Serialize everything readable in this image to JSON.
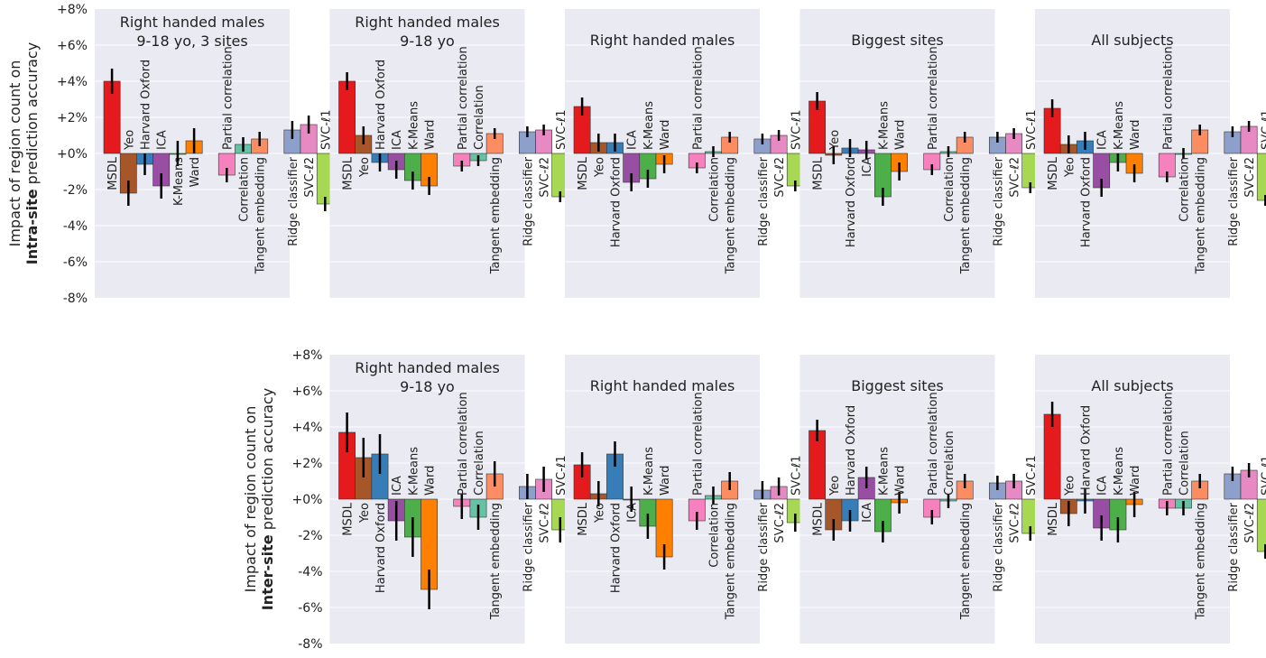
{
  "figure": {
    "row_ylabels": [
      {
        "line1": "Impact of region count on",
        "bold": "Intra-site",
        "rest": " prediction accuracy"
      },
      {
        "line1": "Impact of region count on",
        "bold": "Inter-site",
        "rest": " prediction accuracy"
      }
    ],
    "colors": {
      "panel_bg": "#EAEAF2",
      "grid": "#FFFFFF",
      "error_bar": "#000000",
      "MSDL": "#E41A1C",
      "Yeo": "#A65628",
      "Harvard Oxford": "#377EB8",
      "ICA": "#984EA3",
      "K-Means": "#4DAF4A",
      "Ward": "#FF7F00",
      "Partial correlation": "#F781BF",
      "Correlation": "#66C2A5",
      "Tangent embedding": "#FC8D62",
      "Ridge classifier": "#8DA0CB",
      "SVC-ℓ2": "#E78AC3",
      "SVC-ℓ1": "#A6D854"
    }
  },
  "chart_data": [
    {
      "type": "bar",
      "row": "Intra-site",
      "title": [
        "Right handed males",
        "9-18 yo, 3 sites"
      ],
      "ylim": [
        -8,
        8
      ],
      "yticks": [
        "+8%",
        "+6%",
        "+4%",
        "+2%",
        "+0%",
        "-2%",
        "-4%",
        "-6%",
        "-8%"
      ],
      "categories": [
        "MSDL",
        "Yeo",
        "Harvard Oxford",
        "ICA",
        "K-Means",
        "Ward",
        "Partial correlation",
        "Correlation",
        "Tangent embedding",
        "Ridge classifier",
        "SVC-ℓ2",
        "SVC-ℓ1"
      ],
      "values": [
        4.0,
        -2.2,
        -0.6,
        -1.8,
        0.0,
        0.7,
        -1.2,
        0.5,
        0.8,
        1.3,
        1.6,
        -2.8
      ],
      "errors": [
        0.7,
        0.7,
        0.6,
        0.7,
        0.7,
        0.7,
        0.4,
        0.4,
        0.4,
        0.5,
        0.5,
        0.4
      ]
    },
    {
      "type": "bar",
      "row": "Intra-site",
      "title": [
        "Right handed males",
        "9-18 yo"
      ],
      "ylim": [
        -8,
        8
      ],
      "categories": [
        "MSDL",
        "Yeo",
        "Harvard Oxford",
        "ICA",
        "K-Means",
        "Ward",
        "Partial correlation",
        "Correlation",
        "Tangent embedding",
        "Ridge classifier",
        "SVC-ℓ2",
        "SVC-ℓ1"
      ],
      "values": [
        4.0,
        1.0,
        -0.5,
        -0.9,
        -1.5,
        -1.8,
        -0.7,
        -0.4,
        1.1,
        1.2,
        1.3,
        -2.4
      ],
      "errors": [
        0.5,
        0.5,
        0.5,
        0.5,
        0.5,
        0.5,
        0.3,
        0.3,
        0.3,
        0.3,
        0.3,
        0.3
      ]
    },
    {
      "type": "bar",
      "row": "Intra-site",
      "title": [
        "Right handed males"
      ],
      "ylim": [
        -8,
        8
      ],
      "categories": [
        "MSDL",
        "Yeo",
        "Harvard Oxford",
        "ICA",
        "K-Means",
        "Ward",
        "Partial correlation",
        "Correlation",
        "Tangent embedding",
        "Ridge classifier",
        "SVC-ℓ2",
        "SVC-ℓ1"
      ],
      "values": [
        2.6,
        0.6,
        0.6,
        -1.6,
        -1.4,
        -0.6,
        -0.8,
        0.1,
        0.9,
        0.8,
        1.0,
        -1.8
      ],
      "errors": [
        0.5,
        0.5,
        0.5,
        0.5,
        0.5,
        0.5,
        0.3,
        0.3,
        0.3,
        0.3,
        0.3,
        0.3
      ]
    },
    {
      "type": "bar",
      "row": "Intra-site",
      "title": [
        "Biggest sites"
      ],
      "ylim": [
        -8,
        8
      ],
      "categories": [
        "MSDL",
        "Yeo",
        "Harvard Oxford",
        "ICA",
        "K-Means",
        "Ward",
        "Partial correlation",
        "Correlation",
        "Tangent embedding",
        "Ridge classifier",
        "SVC-ℓ2",
        "SVC-ℓ1"
      ],
      "values": [
        2.9,
        -0.1,
        0.3,
        0.2,
        -2.4,
        -1.0,
        -0.9,
        0.1,
        0.9,
        0.9,
        1.1,
        -1.9
      ],
      "errors": [
        0.5,
        0.5,
        0.5,
        0.5,
        0.5,
        0.5,
        0.3,
        0.3,
        0.3,
        0.3,
        0.3,
        0.3
      ]
    },
    {
      "type": "bar",
      "row": "Intra-site",
      "title": [
        "All subjects"
      ],
      "ylim": [
        -8,
        8
      ],
      "categories": [
        "MSDL",
        "Yeo",
        "Harvard Oxford",
        "ICA",
        "K-Means",
        "Ward",
        "Partial correlation",
        "Correlation",
        "Tangent embedding",
        "Ridge classifier",
        "SVC-ℓ2",
        "SVC-ℓ1"
      ],
      "values": [
        2.5,
        0.5,
        0.7,
        -1.9,
        -0.5,
        -1.1,
        -1.3,
        0.0,
        1.3,
        1.2,
        1.5,
        -2.6
      ],
      "errors": [
        0.5,
        0.5,
        0.5,
        0.5,
        0.5,
        0.5,
        0.3,
        0.3,
        0.3,
        0.3,
        0.3,
        0.3
      ]
    },
    {
      "type": "bar",
      "row": "Inter-site",
      "title": [
        "Right handed males",
        "9-18 yo"
      ],
      "ylim": [
        -8,
        8
      ],
      "yticks": [
        "+8%",
        "+6%",
        "+4%",
        "+2%",
        "+0%",
        "-2%",
        "-4%",
        "-6%",
        "-8%"
      ],
      "categories": [
        "MSDL",
        "Yeo",
        "Harvard Oxford",
        "ICA",
        "K-Means",
        "Ward",
        "Partial correlation",
        "Correlation",
        "Tangent embedding",
        "Ridge classifier",
        "SVC-ℓ2",
        "SVC-ℓ1"
      ],
      "values": [
        3.7,
        2.3,
        2.5,
        -1.2,
        -2.1,
        -5.0,
        -0.4,
        -1.0,
        1.4,
        0.7,
        1.1,
        -1.7
      ],
      "errors": [
        1.1,
        1.1,
        1.1,
        1.1,
        1.1,
        1.1,
        0.7,
        0.7,
        0.7,
        0.7,
        0.7,
        0.7
      ]
    },
    {
      "type": "bar",
      "row": "Inter-site",
      "title": [
        "Right handed males"
      ],
      "ylim": [
        -8,
        8
      ],
      "categories": [
        "MSDL",
        "Yeo",
        "Harvard Oxford",
        "ICA",
        "K-Means",
        "Ward",
        "Partial correlation",
        "Correlation",
        "Tangent embedding",
        "Ridge classifier",
        "SVC-ℓ2",
        "SVC-ℓ1"
      ],
      "values": [
        1.9,
        0.3,
        2.5,
        0.0,
        -1.5,
        -3.2,
        -1.2,
        0.2,
        1.0,
        0.5,
        0.7,
        -1.3
      ],
      "errors": [
        0.7,
        0.7,
        0.7,
        0.7,
        0.7,
        0.7,
        0.5,
        0.5,
        0.5,
        0.5,
        0.5,
        0.5
      ]
    },
    {
      "type": "bar",
      "row": "Inter-site",
      "title": [
        "Biggest sites"
      ],
      "ylim": [
        -8,
        8
      ],
      "categories": [
        "MSDL",
        "Yeo",
        "Harvard Oxford",
        "ICA",
        "K-Means",
        "Ward",
        "Partial correlation",
        "Correlation",
        "Tangent embedding",
        "Ridge classifier",
        "SVC-ℓ2",
        "SVC-ℓ1"
      ],
      "values": [
        3.8,
        -1.7,
        -1.2,
        1.2,
        -1.8,
        -0.2,
        -1.0,
        -0.1,
        1.0,
        0.9,
        1.0,
        -1.9
      ],
      "errors": [
        0.6,
        0.6,
        0.6,
        0.6,
        0.6,
        0.6,
        0.4,
        0.4,
        0.4,
        0.4,
        0.4,
        0.4
      ]
    },
    {
      "type": "bar",
      "row": "Inter-site",
      "title": [
        "All subjects"
      ],
      "ylim": [
        -8,
        8
      ],
      "categories": [
        "MSDL",
        "Yeo",
        "Harvard Oxford",
        "ICA",
        "K-Means",
        "Ward",
        "Partial correlation",
        "Correlation",
        "Tangent embedding",
        "Ridge classifier",
        "SVC-ℓ2",
        "SVC-ℓ1"
      ],
      "values": [
        4.7,
        -0.8,
        -0.1,
        -1.6,
        -1.7,
        -0.3,
        -0.5,
        -0.5,
        1.0,
        1.4,
        1.6,
        -2.9
      ],
      "errors": [
        0.7,
        0.7,
        0.7,
        0.7,
        0.7,
        0.7,
        0.4,
        0.4,
        0.4,
        0.4,
        0.4,
        0.4
      ]
    }
  ]
}
